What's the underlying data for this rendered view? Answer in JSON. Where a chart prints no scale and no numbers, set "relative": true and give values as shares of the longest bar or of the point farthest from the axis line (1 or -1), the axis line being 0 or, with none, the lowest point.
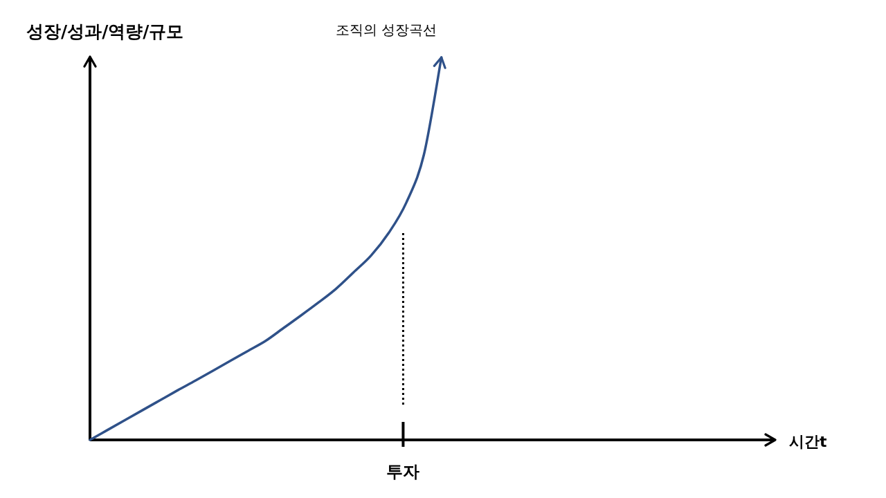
{
  "chart_data": {
    "type": "line",
    "relative": true,
    "xlabel": "시간t",
    "ylabel": "성장/성과/역량/규모",
    "categories": [
      null,
      null,
      null,
      null,
      null,
      null,
      null,
      null,
      null,
      null,
      null,
      null,
      null,
      null,
      null,
      null,
      null,
      null,
      null,
      null,
      null,
      null,
      null,
      null,
      null,
      null,
      null,
      null,
      null,
      null,
      null,
      null,
      null,
      null,
      null,
      null,
      null,
      null,
      null,
      null
    ],
    "series": [
      {
        "name": "조직의 성장곡선",
        "color": "#2f5189",
        "values": [
          0,
          0.026,
          0.052,
          0.078,
          0.104,
          0.13,
          0.155,
          0.181,
          0.207,
          0.233,
          0.259,
          0.292,
          0.325,
          0.359,
          0.395,
          0.438,
          0.482,
          0.541,
          0.62,
          0.745,
          1.0,
          null,
          null,
          null,
          null,
          null,
          null,
          null,
          null,
          null,
          null,
          null,
          null,
          null,
          null,
          null,
          null,
          null,
          null,
          null
        ]
      }
    ],
    "annotations": [
      "투자"
    ]
  }
}
